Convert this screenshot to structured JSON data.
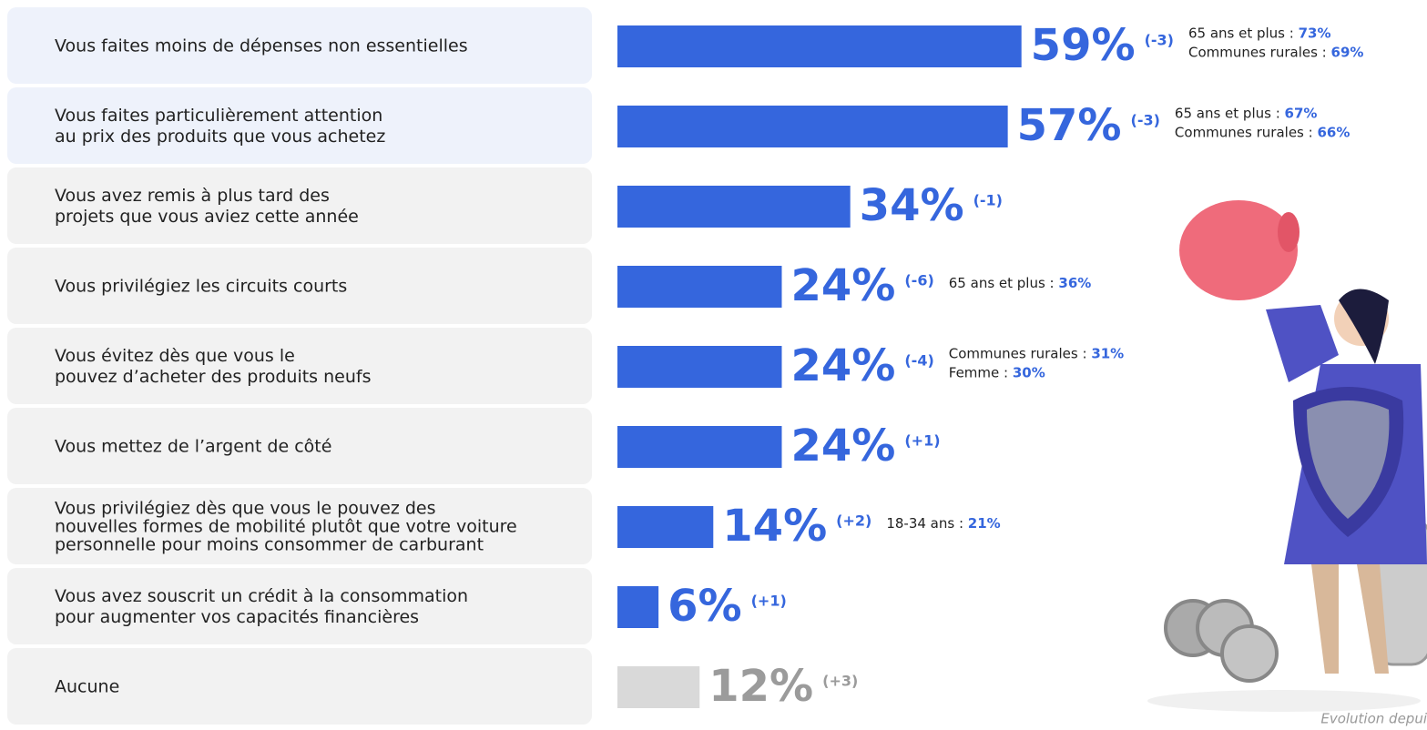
{
  "chart_data": {
    "type": "bar",
    "categories": [
      [
        "Vous faites moins de dépenses non essentielles"
      ],
      [
        "Vous faites particulièrement attention",
        "au prix des produits que vous achetez"
      ],
      [
        "Vous avez remis à plus tard des",
        "projets que vous aviez cette année"
      ],
      [
        "Vous privilégiez les circuits courts"
      ],
      [
        "Vous évitez dès que vous le",
        "pouvez d’acheter des produits neufs"
      ],
      [
        "Vous mettez de l’argent de côté"
      ],
      [
        "Vous privilégiez dès que vous le pouvez des",
        "nouvelles formes de mobilité plutôt que votre voiture",
        "personnelle pour moins consommer de carburant"
      ],
      [
        "Vous avez souscrit un crédit à la consommation",
        "pour augmenter vos capacités financières"
      ],
      [
        "Aucune"
      ]
    ],
    "values": [
      59,
      57,
      34,
      24,
      24,
      24,
      14,
      6,
      12
    ],
    "value_labels": [
      "59%",
      "57%",
      "34%",
      "24%",
      "24%",
      "24%",
      "14%",
      "6%",
      "12%"
    ],
    "change_labels": [
      "(-3)",
      "(-3)",
      "(-1)",
      "(-6)",
      "(-4)",
      "(+1)",
      "(+2)",
      "(+1)",
      "(+3)"
    ],
    "colors": [
      "#3566dd",
      "#3566dd",
      "#3566dd",
      "#3566dd",
      "#3566dd",
      "#3566dd",
      "#3566dd",
      "#3566dd",
      "#d9d9d9"
    ],
    "label_colors": [
      "#3566dd",
      "#3566dd",
      "#3566dd",
      "#3566dd",
      "#3566dd",
      "#3566dd",
      "#3566dd",
      "#3566dd",
      "#9b9b9b"
    ],
    "highlight": [
      true,
      true,
      false,
      false,
      false,
      false,
      false,
      false,
      false
    ],
    "breakdowns": [
      [
        {
          "label": "65 ans et plus : ",
          "value": 73,
          "value_label": "73%"
        },
        {
          "label": "Communes rurales : ",
          "value": 69,
          "value_label": "69%"
        }
      ],
      [
        {
          "label": "65 ans et plus : ",
          "value": 67,
          "value_label": "67%"
        },
        {
          "label": "Communes rurales : ",
          "value": 66,
          "value_label": "66%"
        }
      ],
      [],
      [
        {
          "label": "65 ans et plus : ",
          "value": 36,
          "value_label": "36%"
        }
      ],
      [
        {
          "label": "Communes rurales : ",
          "value": 31,
          "value_label": "31%"
        },
        {
          "label": "Femme : ",
          "value": 30,
          "value_label": "30%"
        }
      ],
      [],
      [
        {
          "label": "18-34 ans : ",
          "value": 21,
          "value_label": "21%"
        }
      ],
      [],
      []
    ],
    "footnote": "Evolution depui"
  }
}
